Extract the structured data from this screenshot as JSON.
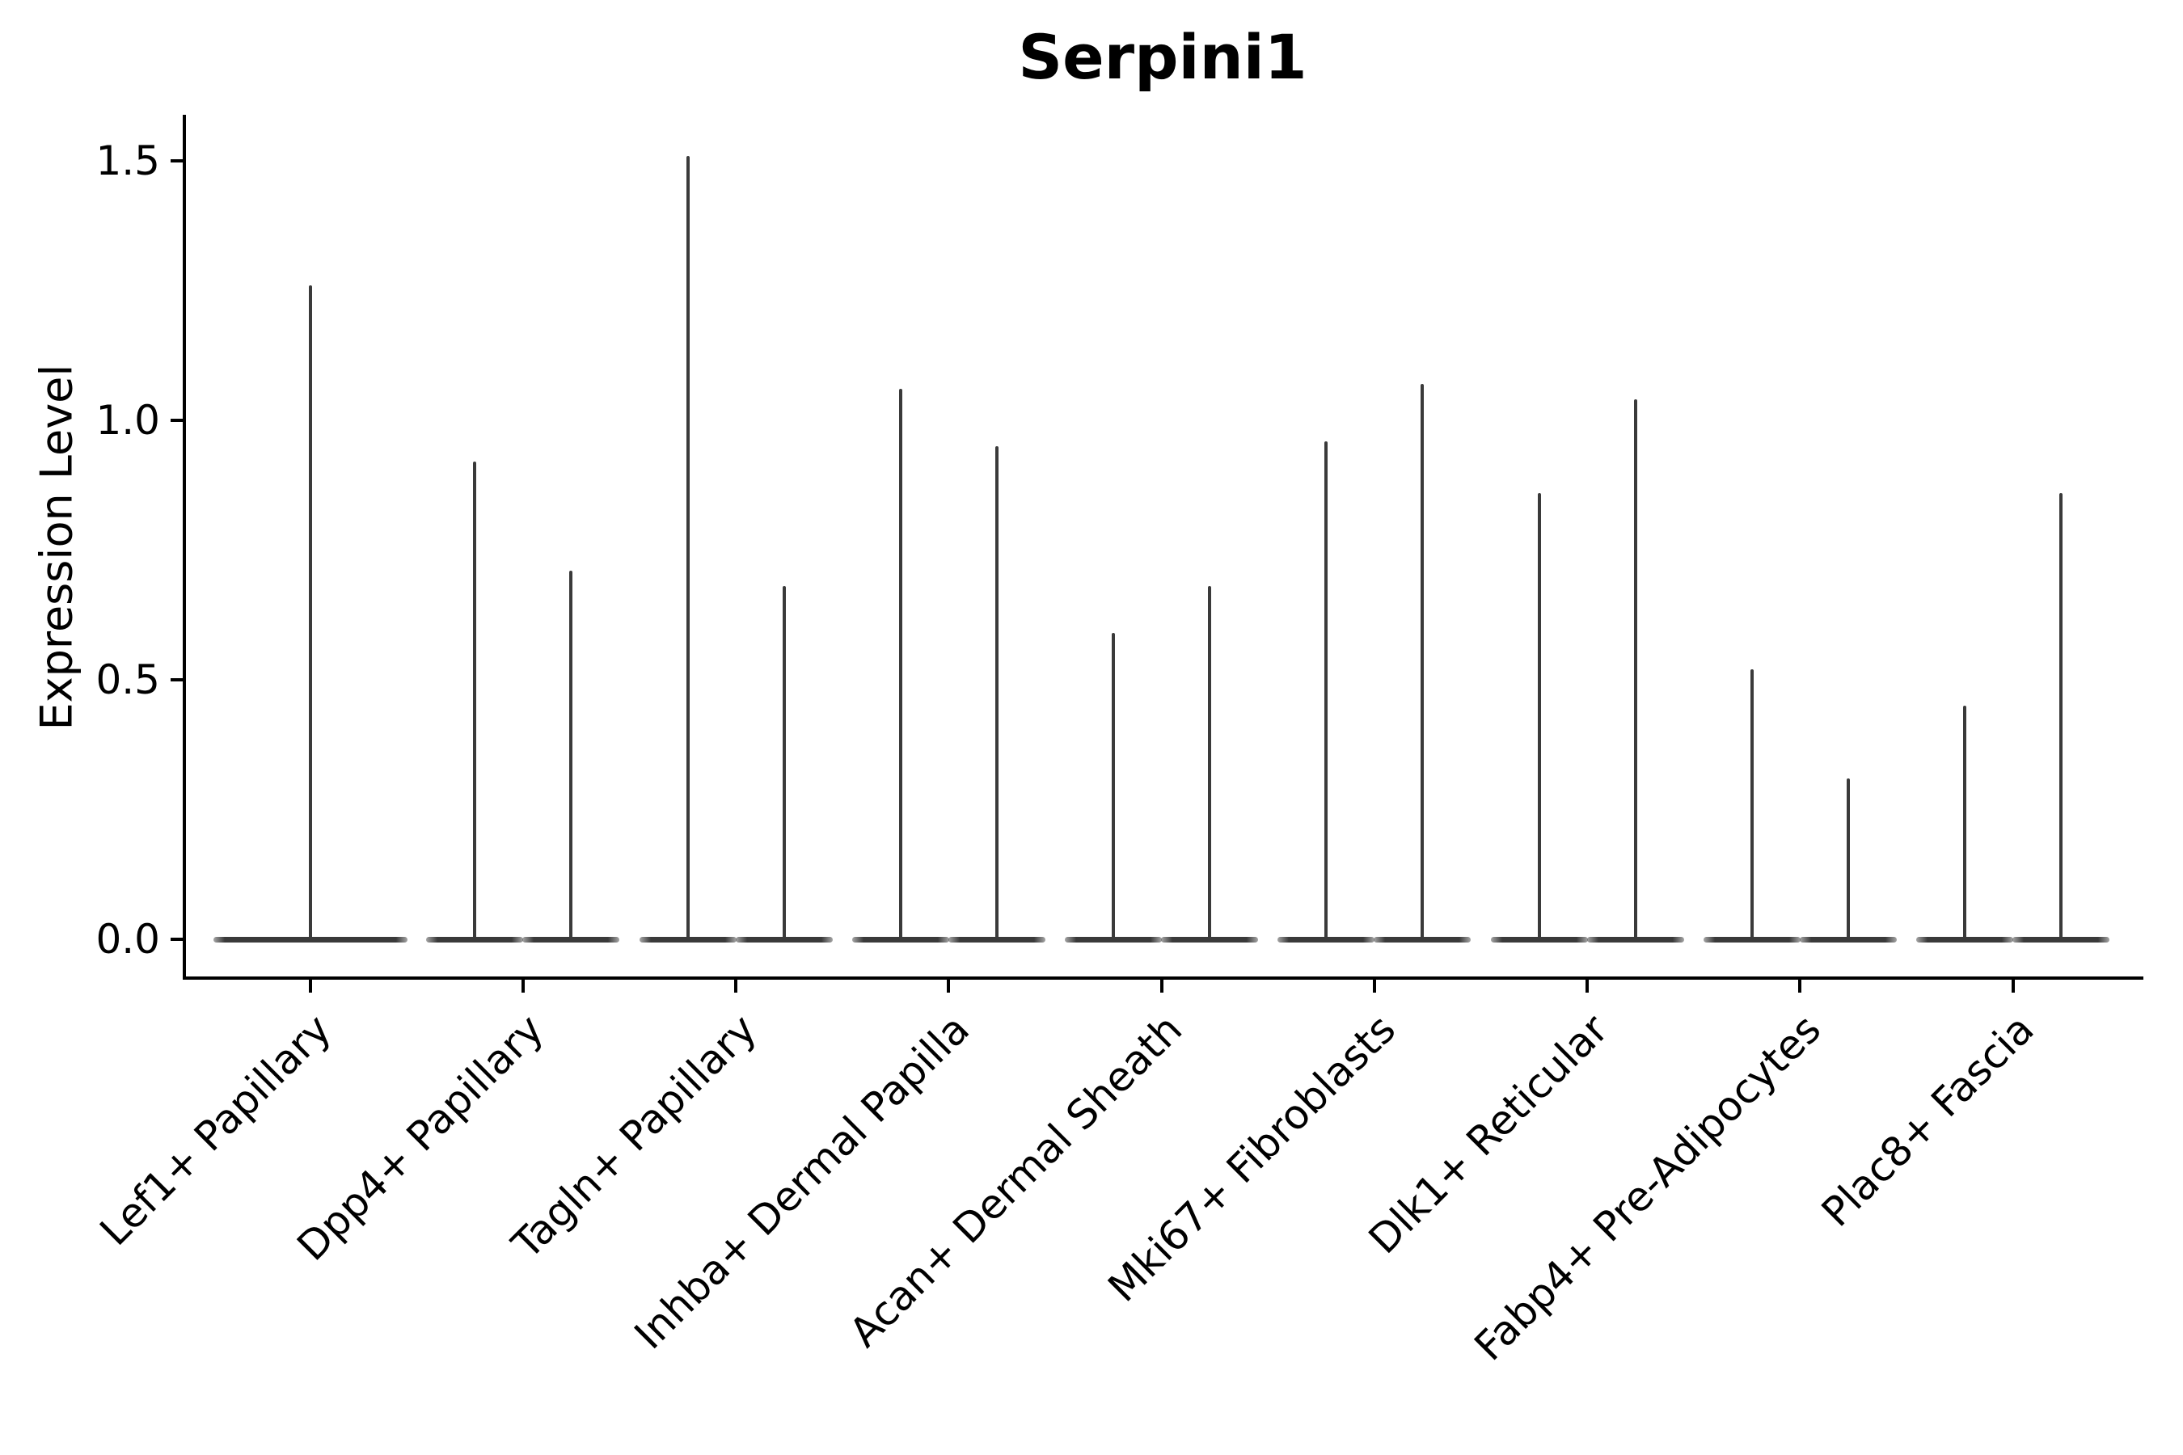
{
  "title": "Serpini1",
  "y_axis": {
    "label": "Expression Level",
    "tick_labels": [
      "1.5",
      "1.0",
      "0.5",
      "0.0"
    ],
    "tick_values": [
      1.5,
      1.0,
      0.5,
      0.0
    ]
  },
  "colors": {
    "ink": "#000000",
    "violin": "#3a3a3a",
    "background": "#ffffff"
  },
  "chart_data": {
    "type": "violin",
    "title": "Serpini1",
    "xlabel": "",
    "ylabel": "Expression Level",
    "ylim": [
      -0.07,
      1.59
    ],
    "yticks": [
      0.0,
      0.5,
      1.0,
      1.5
    ],
    "grid": false,
    "legend_position": "none",
    "mass_concentrated_at_zero": true,
    "categories": [
      "Lef1+ Papillary",
      "Dpp4+ Papillary",
      "Tagln+ Papillary",
      "Inhba+ Dermal Papilla",
      "Acan+ Dermal Sheath",
      "Mki67+ Fibroblasts",
      "Dlk1+ Reticular",
      "Fabp4+ Pre-Adipocytes",
      "Plac8+ Fascia"
    ],
    "violins": [
      {
        "category": "Lef1+ Papillary",
        "maxima": [
          1.26
        ]
      },
      {
        "category": "Dpp4+ Papillary",
        "maxima": [
          0.92,
          0.71
        ]
      },
      {
        "category": "Tagln+ Papillary",
        "maxima": [
          1.51,
          0.68
        ]
      },
      {
        "category": "Inhba+ Dermal Papilla",
        "maxima": [
          1.06,
          0.95
        ]
      },
      {
        "category": "Acan+ Dermal Sheath",
        "maxima": [
          0.59,
          0.68
        ]
      },
      {
        "category": "Mki67+ Fibroblasts",
        "maxima": [
          0.96,
          1.07
        ]
      },
      {
        "category": "Dlk1+ Reticular",
        "maxima": [
          0.86,
          1.04
        ]
      },
      {
        "category": "Fabp4+ Pre-Adipocytes",
        "maxima": [
          0.52,
          0.31
        ]
      },
      {
        "category": "Plac8+ Fascia",
        "maxima": [
          0.45,
          0.86
        ]
      }
    ]
  }
}
